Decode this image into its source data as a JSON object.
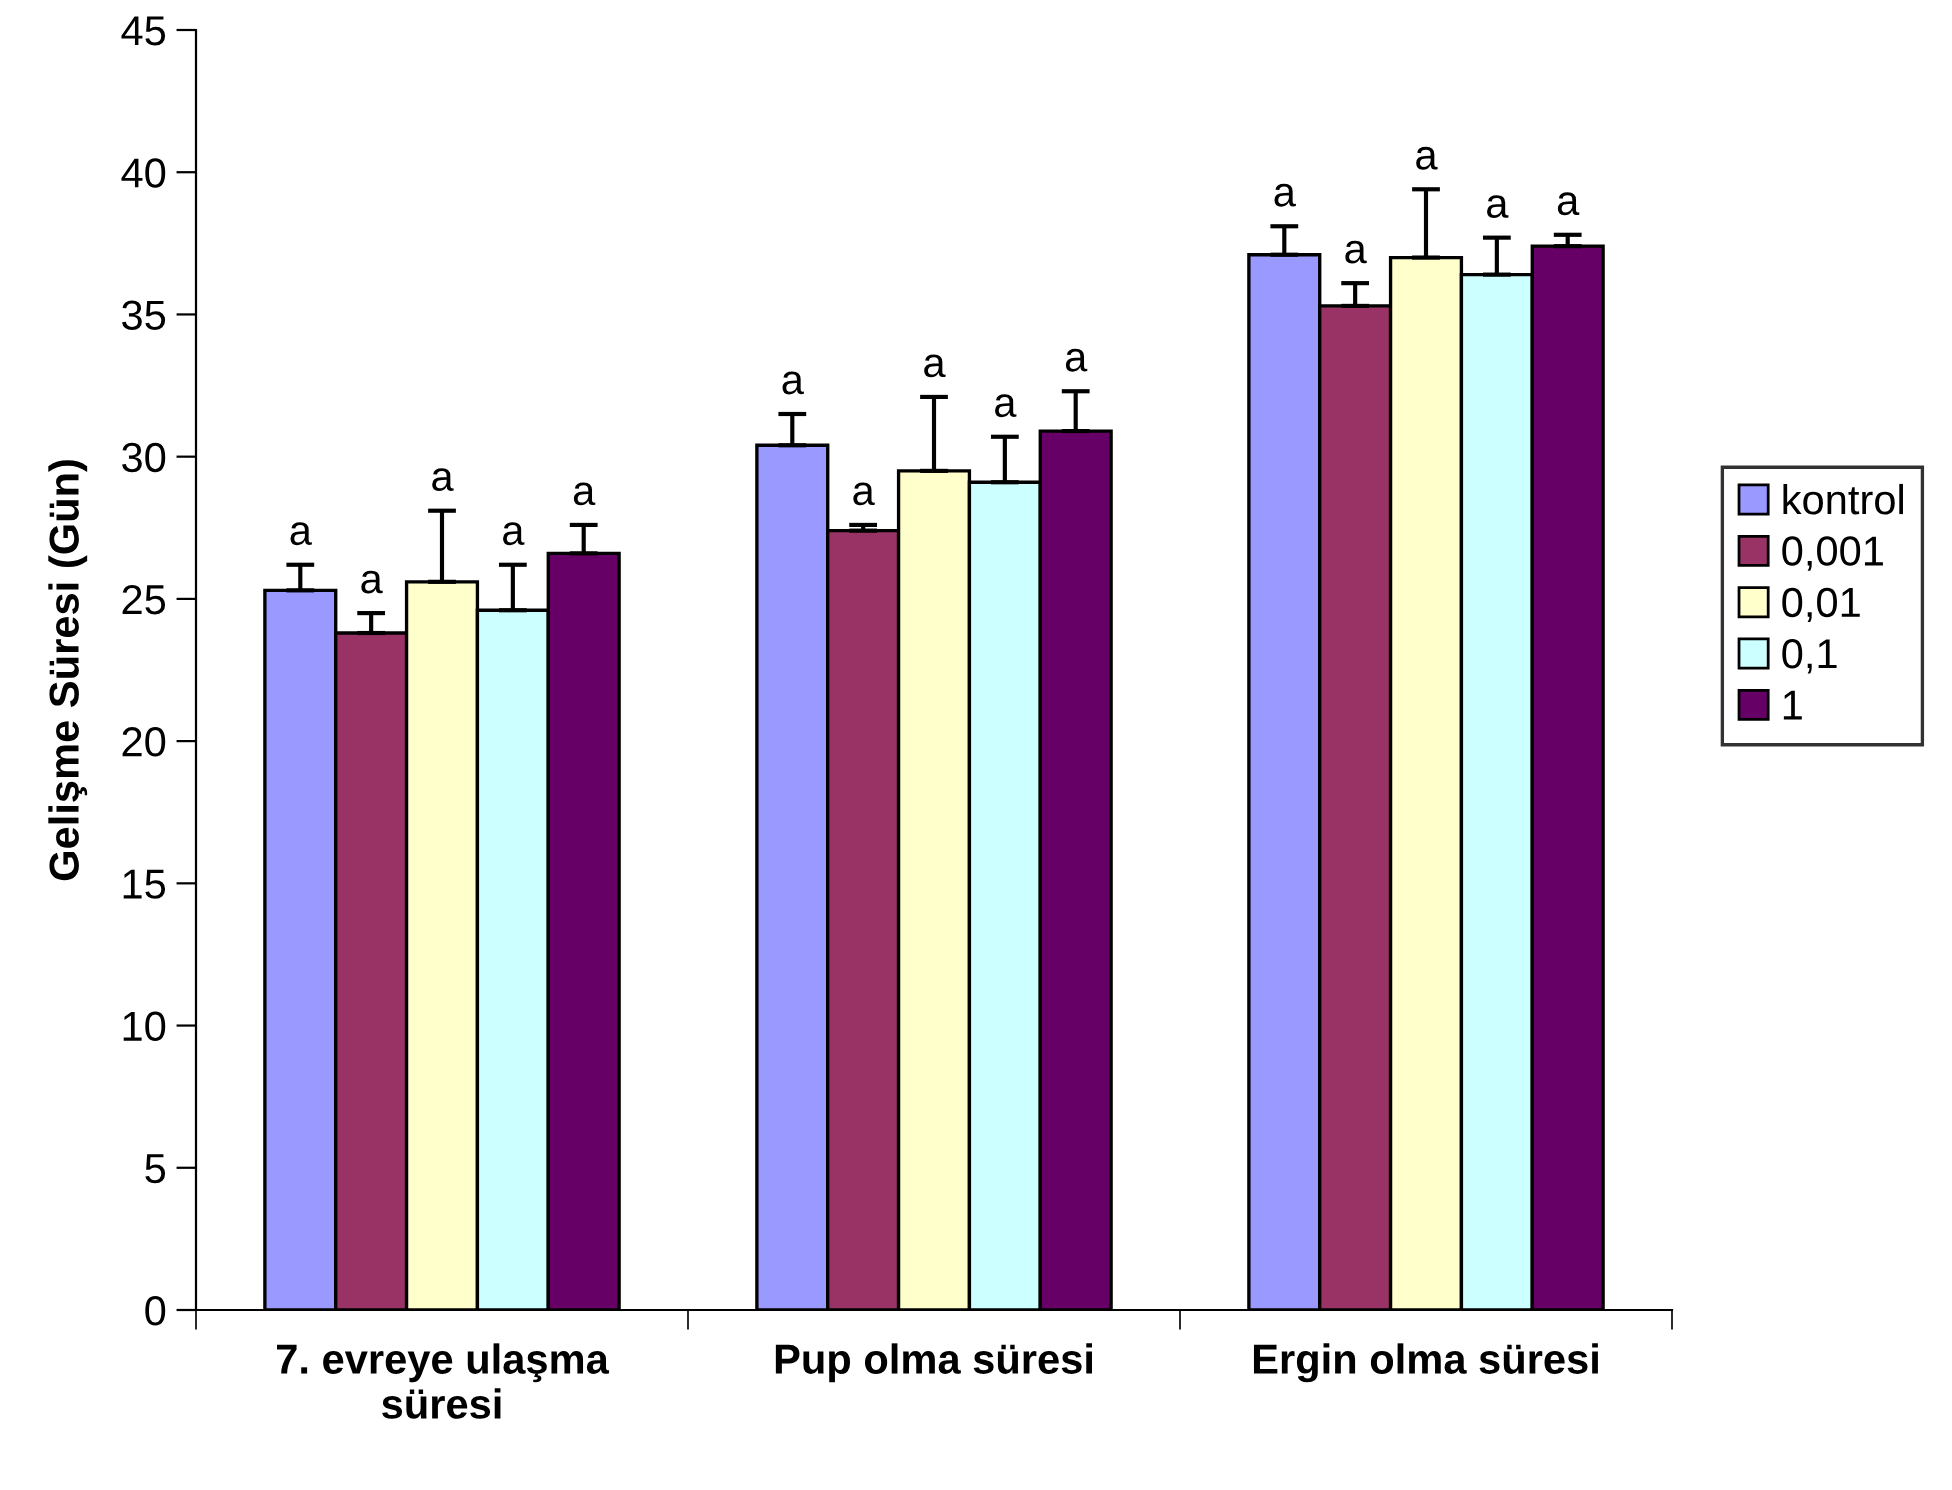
{
  "chart_data": {
    "type": "bar",
    "ylabel": "Gelişme Süresi (Gün)",
    "categories": [
      "7. evreye ulaşma\nsüresi",
      "Pup olma süresi",
      "Ergin olma süresi"
    ],
    "series": [
      {
        "name": "kontrol",
        "color": "#9999ff",
        "values": [
          25.3,
          30.4,
          37.1
        ],
        "errors": [
          [
            25.3,
            26.2
          ],
          [
            30.4,
            31.5
          ],
          [
            37.1,
            38.1
          ]
        ],
        "value_labels": [
          "a",
          "a",
          "a"
        ]
      },
      {
        "name": "0,001",
        "color": "#993366",
        "values": [
          23.8,
          27.4,
          35.3
        ],
        "errors": [
          [
            23.8,
            24.5
          ],
          [
            27.4,
            27.6
          ],
          [
            35.3,
            36.1
          ]
        ],
        "value_labels": [
          "a",
          "a",
          "a"
        ]
      },
      {
        "name": "0,01",
        "color": "#ffffcc",
        "values": [
          25.6,
          29.5,
          37.0
        ],
        "errors": [
          [
            25.6,
            28.1
          ],
          [
            29.5,
            32.1
          ],
          [
            37.0,
            39.4
          ]
        ],
        "value_labels": [
          "a",
          "a",
          "a"
        ]
      },
      {
        "name": "0,1",
        "color": "#ccffff",
        "values": [
          24.6,
          29.1,
          36.4
        ],
        "errors": [
          [
            24.6,
            26.2
          ],
          [
            29.1,
            30.7
          ],
          [
            36.4,
            37.7
          ]
        ],
        "value_labels": [
          "a",
          "a",
          "a"
        ]
      },
      {
        "name": "1",
        "color": "#660066",
        "values": [
          26.6,
          30.9,
          37.4
        ],
        "errors": [
          [
            26.6,
            27.6
          ],
          [
            30.9,
            32.3
          ],
          [
            37.4,
            37.8
          ]
        ],
        "value_labels": [
          "a",
          "a",
          "a"
        ]
      }
    ],
    "ylim": [
      0,
      45
    ],
    "yticks": [
      0,
      5,
      10,
      15,
      20,
      25,
      30,
      35,
      40,
      45
    ],
    "grid": false,
    "legend": "right"
  }
}
